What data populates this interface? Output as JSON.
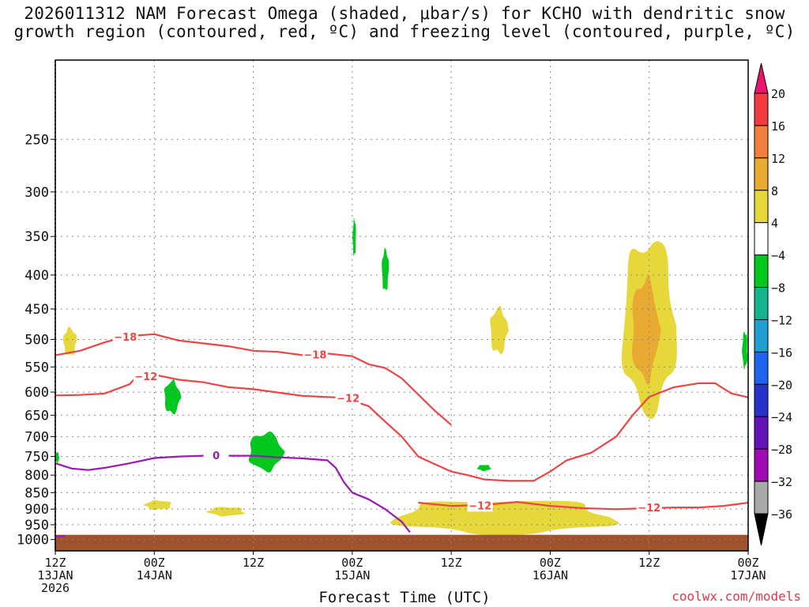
{
  "title_line1": "2026011312 NAM Forecast Omega (shaded, μbar/s) for KCHO with dendritic snow",
  "title_line2": "growth region (contoured, red, ºC) and freezing level (contoured, purple, ºC)",
  "credit": "coolwx.com/models",
  "chart_data": {
    "type": "heatmap",
    "title": "2026011312 NAM Forecast Omega (shaded, μbar/s) for KCHO with dendritic snow growth region (contoured, red, ºC) and freezing level (contoured, purple, ºC)",
    "xlabel": "Forecast Time (UTC)",
    "ylabel": "",
    "x_range_hours": [
      0,
      84
    ],
    "x_ticks": [
      {
        "hour": 0,
        "line1": "12Z",
        "line2": "13JAN",
        "line3": "2026"
      },
      {
        "hour": 12,
        "line1": "00Z",
        "line2": "14JAN",
        "line3": ""
      },
      {
        "hour": 24,
        "line1": "12Z",
        "line2": "",
        "line3": ""
      },
      {
        "hour": 36,
        "line1": "00Z",
        "line2": "15JAN",
        "line3": ""
      },
      {
        "hour": 48,
        "line1": "12Z",
        "line2": "",
        "line3": ""
      },
      {
        "hour": 60,
        "line1": "00Z",
        "line2": "16JAN",
        "line3": ""
      },
      {
        "hour": 72,
        "line1": "12Z",
        "line2": "",
        "line3": ""
      },
      {
        "hour": 84,
        "line1": "00Z",
        "line2": "17JAN",
        "line3": ""
      }
    ],
    "y_range_hpa": [
      1040,
      190
    ],
    "y_ticks": [
      250,
      300,
      350,
      400,
      450,
      500,
      550,
      600,
      650,
      700,
      750,
      800,
      850,
      900,
      950,
      1000
    ],
    "ground_pressure_hpa": 1000,
    "colorbar": {
      "labels": [
        "20",
        "16",
        "12",
        "8",
        "4",
        "−4",
        "−8",
        "−12",
        "−16",
        "−20",
        "−24",
        "−28",
        "−32",
        "−36"
      ],
      "colors": [
        "#e8146e",
        "#f03c3c",
        "#f0803c",
        "#e8aa30",
        "#e6d83a",
        "#ffffff",
        "#00c81e",
        "#14b48c",
        "#1ea0d2",
        "#1e64ec",
        "#2832c8",
        "#6414b4",
        "#a00ab4",
        "#a8a8a8",
        "#000000"
      ]
    },
    "contour_labels": {
      "red_upper_18": "−18",
      "red_upper_18b": "−18",
      "red_12a": "−12",
      "red_12b": "−12",
      "red_lower_12a": "−12",
      "red_lower_12b": "−12",
      "freezing_0": "0"
    },
    "series": [
      {
        "name": "-18C isotherm",
        "color": "#ee4444",
        "points": [
          [
            0,
            528
          ],
          [
            3,
            520
          ],
          [
            6,
            505
          ],
          [
            9,
            494
          ],
          [
            12,
            491
          ],
          [
            15,
            502
          ],
          [
            18,
            507
          ],
          [
            21,
            512
          ],
          [
            24,
            520
          ],
          [
            27,
            522
          ],
          [
            30,
            528
          ],
          [
            33,
            525
          ],
          [
            36,
            530
          ],
          [
            38,
            545
          ],
          [
            40,
            552
          ],
          [
            42,
            572
          ],
          [
            44,
            605
          ],
          [
            46,
            640
          ],
          [
            48,
            672
          ]
        ]
      },
      {
        "name": "-12C isotherm",
        "color": "#ee4444",
        "points": [
          [
            0,
            607
          ],
          [
            3,
            606
          ],
          [
            6,
            603
          ],
          [
            9,
            584
          ],
          [
            10,
            566
          ],
          [
            12,
            565
          ],
          [
            15,
            575
          ],
          [
            18,
            580
          ],
          [
            21,
            590
          ],
          [
            24,
            594
          ],
          [
            30,
            608
          ],
          [
            35,
            612
          ],
          [
            38,
            630
          ],
          [
            40,
            665
          ],
          [
            42,
            700
          ],
          [
            44,
            750
          ],
          [
            46,
            770
          ],
          [
            48,
            790
          ],
          [
            50,
            800
          ],
          [
            52,
            812
          ],
          [
            55,
            816
          ],
          [
            58,
            816
          ],
          [
            60,
            790
          ],
          [
            62,
            760
          ],
          [
            65,
            740
          ],
          [
            68,
            700
          ],
          [
            70,
            650
          ],
          [
            72,
            610
          ],
          [
            75,
            590
          ],
          [
            78,
            582
          ],
          [
            80,
            582
          ],
          [
            82,
            603
          ],
          [
            84,
            611
          ]
        ]
      },
      {
        "name": "-12C lower isotherm",
        "color": "#ee4444",
        "points": [
          [
            44,
            880
          ],
          [
            48,
            890
          ],
          [
            52,
            887
          ],
          [
            56,
            878
          ],
          [
            60,
            890
          ],
          [
            64,
            897
          ],
          [
            68,
            900
          ],
          [
            72,
            897
          ],
          [
            75,
            895
          ],
          [
            78,
            895
          ],
          [
            81,
            890
          ],
          [
            84,
            880
          ]
        ]
      },
      {
        "name": "0C freezing level",
        "color": "#9a18b4",
        "points": [
          [
            0,
            768
          ],
          [
            2,
            782
          ],
          [
            4,
            786
          ],
          [
            6,
            780
          ],
          [
            9,
            768
          ],
          [
            12,
            754
          ],
          [
            15,
            750
          ],
          [
            18,
            748
          ],
          [
            21,
            748
          ],
          [
            24,
            748
          ],
          [
            27,
            752
          ],
          [
            30,
            755
          ],
          [
            33,
            760
          ],
          [
            34,
            780
          ],
          [
            35,
            820
          ],
          [
            36,
            850
          ],
          [
            38,
            870
          ],
          [
            40,
            900
          ],
          [
            42,
            940
          ],
          [
            43,
            975
          ]
        ]
      }
    ],
    "shaded_regions": [
      {
        "value_class": "4",
        "color": "#e6d83a",
        "hours": [
          68,
          76
        ],
        "hpa": [
          330,
          690
        ]
      },
      {
        "value_class": "8",
        "color": "#e8aa30",
        "hours": [
          69.5,
          73.5
        ],
        "hpa": [
          390,
          600
        ]
      },
      {
        "value_class": "4",
        "color": "#e6d83a",
        "hours": [
          52.5,
          55
        ],
        "hpa": [
          440,
          535
        ]
      },
      {
        "value_class": "4",
        "color": "#e6d83a",
        "hours": [
          0.8,
          2.7
        ],
        "hpa": [
          475,
          535
        ]
      },
      {
        "value_class": "4",
        "color": "#e6d83a",
        "hours": [
          10.5,
          14.5
        ],
        "hpa": [
          870,
          905
        ]
      },
      {
        "value_class": "4",
        "color": "#e6d83a",
        "hours": [
          18,
          23.5
        ],
        "hpa": [
          890,
          925
        ]
      },
      {
        "value_class": "4",
        "color": "#e6d83a",
        "hours": [
          38,
          71
        ],
        "hpa": [
          860,
          995
        ]
      },
      {
        "value_class": "-4",
        "color": "#00c81e",
        "hours": [
          23,
          28
        ],
        "hpa": [
          680,
          800
        ]
      },
      {
        "value_class": "-4",
        "color": "#00c81e",
        "hours": [
          13,
          15.3
        ],
        "hpa": [
          570,
          655
        ]
      },
      {
        "value_class": "-4",
        "color": "#00c81e",
        "hours": [
          39.5,
          40.5
        ],
        "hpa": [
          360,
          430
        ]
      },
      {
        "value_class": "-4",
        "color": "#00c81e",
        "hours": [
          36,
          36.5
        ],
        "hpa": [
          325,
          380
        ]
      },
      {
        "value_class": "-4",
        "color": "#00c81e",
        "hours": [
          83.2,
          84
        ],
        "hpa": [
          480,
          560
        ]
      },
      {
        "value_class": "-4",
        "color": "#00c81e",
        "hours": [
          51,
          53
        ],
        "hpa": [
          770,
          790
        ]
      },
      {
        "value_class": "-4",
        "color": "#00c81e",
        "hours": [
          0,
          0.5
        ],
        "hpa": [
          735,
          770
        ]
      }
    ]
  }
}
